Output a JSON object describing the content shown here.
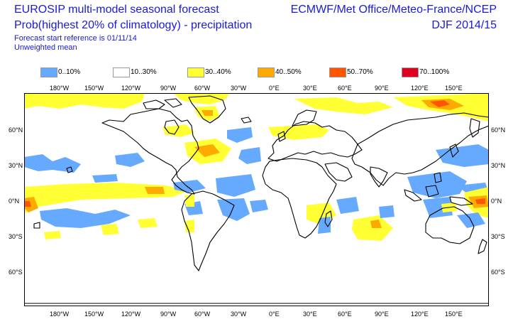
{
  "header": {
    "title_left_1": "EUROSIP multi-model seasonal forecast",
    "title_left_2": "Prob(highest 20% of climatology) - precipitation",
    "subtitle_1": "Forecast start reference is 01/11/14",
    "subtitle_2": "Unweighted mean",
    "title_right_1": "ECMWF/Met Office/Meteo-France/NCEP",
    "title_right_2": "DJF 2014/15"
  },
  "legend": [
    {
      "label": "0..10%",
      "color": "#66aaff"
    },
    {
      "label": "10..30%",
      "color": "#ffffff"
    },
    {
      "label": "30..40%",
      "color": "#ffff33"
    },
    {
      "label": "40..50%",
      "color": "#ffaa00"
    },
    {
      "label": "50..70%",
      "color": "#ff5500"
    },
    {
      "label": "70..100%",
      "color": "#dd0022"
    }
  ],
  "axes": {
    "lon_labels": [
      "180°W",
      "150°W",
      "120°W",
      "90°W",
      "60°W",
      "30°W",
      "0°E",
      "30°E",
      "60°E",
      "90°E",
      "120°E",
      "150°E"
    ],
    "lat_labels": [
      "60°N",
      "30°N",
      "0°N",
      "30°S",
      "60°S"
    ]
  },
  "colors": {
    "blue": "#66aaff",
    "yellow": "#ffff33",
    "orange": "#ffaa00",
    "red": "#ff5500",
    "coast": "#000000"
  }
}
